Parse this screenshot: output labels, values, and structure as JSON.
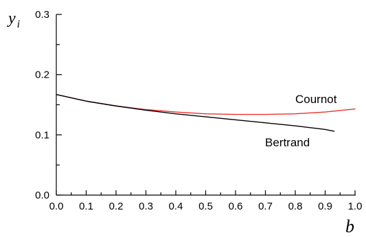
{
  "chart_data": {
    "type": "line",
    "xlabel": "b",
    "ylabel": "y",
    "ylabel_subscript": "i",
    "xlim": [
      0.0,
      1.0
    ],
    "ylim": [
      0.0,
      0.3
    ],
    "x_ticks": [
      "0.0",
      "0.1",
      "0.2",
      "0.3",
      "0.4",
      "0.5",
      "0.6",
      "0.7",
      "0.8",
      "0.9",
      "1.0"
    ],
    "y_ticks": [
      "0.0",
      "0.1",
      "0.2",
      "0.3"
    ],
    "grid": false,
    "series": [
      {
        "name": "Cournot",
        "color": "#e8322b",
        "x": [
          0.0,
          0.1,
          0.2,
          0.3,
          0.4,
          0.5,
          0.6,
          0.7,
          0.8,
          0.9,
          1.0
        ],
        "y": [
          0.167,
          0.156,
          0.148,
          0.142,
          0.138,
          0.135,
          0.134,
          0.134,
          0.135,
          0.138,
          0.143
        ]
      },
      {
        "name": "Bertrand",
        "color": "#000000",
        "x": [
          0.0,
          0.1,
          0.2,
          0.3,
          0.4,
          0.5,
          0.6,
          0.7,
          0.8,
          0.9,
          0.93
        ],
        "y": [
          0.167,
          0.156,
          0.148,
          0.141,
          0.135,
          0.13,
          0.125,
          0.12,
          0.115,
          0.109,
          0.106
        ]
      }
    ]
  }
}
